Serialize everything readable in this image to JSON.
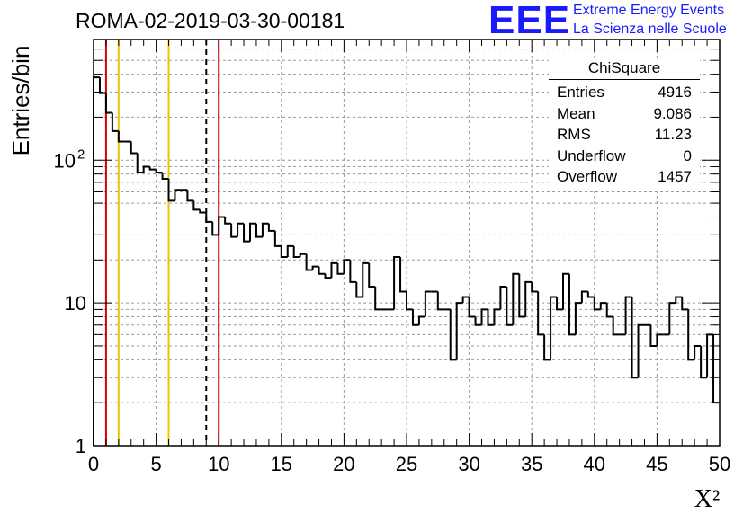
{
  "page_title": "ROMA-02-2019-03-30-00181",
  "logo": {
    "mark": "EEE",
    "line1": "Extreme Energy Events",
    "line2": "La Scienza nelle Scuole"
  },
  "stats": {
    "title": "ChiSquare",
    "rows": [
      {
        "label": "Entries",
        "value": "4916"
      },
      {
        "label": "Mean",
        "value": "9.086"
      },
      {
        "label": "RMS",
        "value": "11.23"
      },
      {
        "label": "Underflow",
        "value": "0"
      },
      {
        "label": "Overflow",
        "value": "1457"
      }
    ]
  },
  "colors": {
    "red_line": "#dd0000",
    "orange_line": "#f2c200",
    "histogram": "#000000",
    "grid": "#9a9a9a"
  },
  "chart_data": {
    "type": "bar",
    "histogram_style": "step",
    "title": "ROMA-02-2019-03-30-00181",
    "xlabel": "X²",
    "ylabel": "Entries/bin",
    "xlim": [
      0,
      50
    ],
    "ylim": [
      1,
      700
    ],
    "y_scale": "log",
    "grid": true,
    "bin_width": 0.5,
    "x_ticks": [
      0,
      5,
      10,
      15,
      20,
      25,
      30,
      35,
      40,
      45,
      50
    ],
    "x_tick_labels": [
      "0",
      "5",
      "10",
      "15",
      "20",
      "25",
      "30",
      "35",
      "40",
      "45",
      "50"
    ],
    "y_ticks": [
      {
        "value": 1,
        "label": "1"
      },
      {
        "value": 10,
        "label": "10"
      },
      {
        "value": 100,
        "label": "10",
        "exponent": "2"
      }
    ],
    "vertical_lines": [
      {
        "x": 1,
        "style": "solid",
        "color": "red"
      },
      {
        "x": 2,
        "style": "solid",
        "color": "orange"
      },
      {
        "x": 6,
        "style": "solid",
        "color": "orange"
      },
      {
        "x": 9,
        "style": "dashed",
        "color": "black"
      },
      {
        "x": 10,
        "style": "solid",
        "color": "red"
      }
    ],
    "bin_values": [
      380,
      295,
      215,
      160,
      135,
      135,
      112,
      82,
      90,
      86,
      82,
      74,
      52,
      62,
      62,
      52,
      45,
      43,
      37,
      30,
      40,
      36,
      29,
      36,
      27,
      36,
      29,
      36,
      32,
      25,
      21,
      25,
      21,
      22,
      17,
      18,
      16,
      15,
      19,
      16,
      20,
      14,
      11,
      19,
      13,
      9,
      9,
      9,
      21,
      12,
      9,
      7,
      8,
      12,
      12,
      9,
      9,
      4,
      10,
      11,
      8,
      7,
      9,
      7,
      9,
      13,
      7,
      16,
      8,
      14,
      12,
      6,
      4,
      11,
      9,
      16,
      6,
      10,
      12,
      11,
      9,
      10,
      8,
      6,
      6,
      11,
      3,
      7,
      7,
      5,
      6,
      6,
      10,
      11,
      9,
      4,
      5,
      3,
      6,
      2
    ]
  }
}
